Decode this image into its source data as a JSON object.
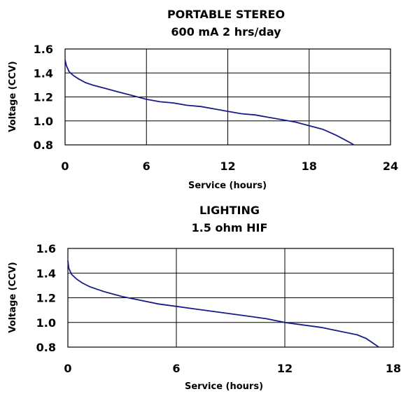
{
  "chart_data": [
    {
      "type": "line",
      "title": "PORTABLE STEREO",
      "subtitle": "600 mA 2 hrs/day",
      "xlabel": "Service (hours)",
      "ylabel": "Voltage (CCV)",
      "xlim": [
        0,
        24
      ],
      "ylim": [
        0.8,
        1.6
      ],
      "x_ticks": [
        "0",
        "6",
        "12",
        "18",
        "24"
      ],
      "y_ticks": [
        "0.8",
        "1.0",
        "1.2",
        "1.4",
        "1.6"
      ],
      "grid": true,
      "line_color": "#1a1a8c",
      "series": [
        {
          "x": [
            0,
            0.1,
            0.3,
            0.6,
            1.0,
            1.5,
            2.0,
            3.0,
            4.0,
            5.0,
            6.0,
            7.0,
            8.0,
            9.0,
            10.0,
            11.0,
            12.0,
            13.0,
            14.0,
            15.0,
            16.0,
            17.0,
            18.0,
            19.0,
            20.0,
            20.5,
            21.0,
            21.3
          ],
          "y": [
            1.51,
            1.46,
            1.41,
            1.38,
            1.35,
            1.32,
            1.3,
            1.27,
            1.24,
            1.21,
            1.18,
            1.16,
            1.15,
            1.13,
            1.12,
            1.1,
            1.08,
            1.06,
            1.05,
            1.03,
            1.01,
            0.99,
            0.96,
            0.93,
            0.88,
            0.85,
            0.82,
            0.8
          ]
        }
      ]
    },
    {
      "type": "line",
      "title": "LIGHTING",
      "subtitle": "1.5 ohm HIF",
      "xlabel": "Service (hours)",
      "ylabel": "Voltage (CCV)",
      "xlim": [
        0,
        18
      ],
      "ylim": [
        0.8,
        1.6
      ],
      "x_ticks": [
        "0",
        "6",
        "12",
        "18"
      ],
      "y_ticks": [
        "0.8",
        "1.0",
        "1.2",
        "1.4",
        "1.6"
      ],
      "grid": true,
      "line_color": "#1a1a8c",
      "series": [
        {
          "x": [
            0,
            0.05,
            0.2,
            0.5,
            0.8,
            1.2,
            1.6,
            2.0,
            2.5,
            3.0,
            4.0,
            5.0,
            6.0,
            7.0,
            8.0,
            9.0,
            10.0,
            11.0,
            12.0,
            13.0,
            14.0,
            15.0,
            16.0,
            16.5,
            16.8,
            17.0,
            17.2
          ],
          "y": [
            1.5,
            1.44,
            1.39,
            1.35,
            1.32,
            1.29,
            1.27,
            1.25,
            1.23,
            1.21,
            1.18,
            1.15,
            1.13,
            1.11,
            1.09,
            1.07,
            1.05,
            1.03,
            1.0,
            0.98,
            0.96,
            0.93,
            0.9,
            0.87,
            0.84,
            0.82,
            0.8
          ]
        }
      ]
    }
  ]
}
